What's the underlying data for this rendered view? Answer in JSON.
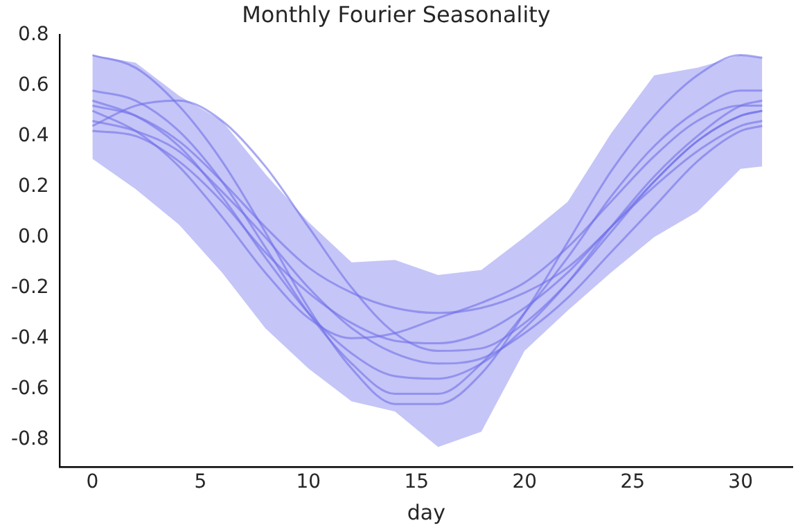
{
  "chart_data": {
    "type": "line",
    "title": "Monthly Fourier Seasonality",
    "xlabel": "day",
    "x": [
      0,
      2,
      4,
      6,
      8,
      10,
      12,
      14,
      16,
      18,
      20,
      22,
      24,
      26,
      28,
      30,
      31
    ],
    "xlim": [
      -1.5,
      32.4
    ],
    "xticks": [
      0,
      5,
      10,
      15,
      20,
      25,
      30
    ],
    "ylim": [
      -0.91,
      0.8
    ],
    "yticks": [
      -0.8,
      -0.6,
      -0.4,
      -0.2,
      {
        "value": 0,
        "label": "0.0"
      },
      0.2,
      0.4,
      0.6,
      0.8
    ],
    "grid": false,
    "legend": false,
    "marker": "none",
    "line_style": "solid",
    "series": [
      {
        "color": "#6f6fea",
        "values": [
          0.72,
          0.67,
          0.52,
          0.3,
          0.02,
          -0.28,
          -0.52,
          -0.66,
          -0.66,
          -0.54,
          -0.3,
          -0.02,
          0.26,
          0.48,
          0.64,
          0.72,
          0.71
        ],
        "lower": [
          0.31,
          0.19,
          0.05,
          -0.14,
          -0.36,
          -0.52,
          -0.65,
          -0.69,
          -0.83,
          -0.77,
          -0.45,
          -0.29,
          -0.14,
          0.0,
          0.1,
          0.27,
          0.28
        ],
        "upper": [
          0.72,
          0.69,
          0.56,
          0.46,
          0.25,
          0.06,
          -0.1,
          -0.09,
          -0.15,
          -0.13,
          0.0,
          0.14,
          0.41,
          0.64,
          0.67,
          0.72,
          0.71
        ]
      },
      {
        "color": "#6f6fea",
        "values": [
          0.44,
          0.52,
          0.54,
          0.46,
          0.28,
          0.04,
          -0.2,
          -0.38,
          -0.45,
          -0.44,
          -0.34,
          -0.18,
          0.02,
          0.22,
          0.38,
          0.48,
          0.5
        ]
      },
      {
        "color": "#6f6fea",
        "values": [
          0.58,
          0.54,
          0.42,
          0.22,
          -0.04,
          -0.3,
          -0.5,
          -0.62,
          -0.62,
          -0.5,
          -0.3,
          -0.08,
          0.16,
          0.36,
          0.5,
          0.58,
          0.58
        ]
      },
      {
        "color": "#6f6fea",
        "values": [
          0.52,
          0.48,
          0.38,
          0.22,
          0.04,
          -0.12,
          -0.22,
          -0.28,
          -0.3,
          -0.28,
          -0.22,
          -0.12,
          0.04,
          0.22,
          0.38,
          0.48,
          0.5
        ]
      },
      {
        "color": "#6f6fea",
        "values": [
          0.5,
          0.42,
          0.28,
          0.08,
          -0.14,
          -0.32,
          -0.4,
          -0.38,
          -0.32,
          -0.26,
          -0.18,
          -0.04,
          0.14,
          0.32,
          0.46,
          0.52,
          0.52
        ]
      },
      {
        "color": "#6f6fea",
        "values": [
          0.54,
          0.48,
          0.36,
          0.16,
          -0.08,
          -0.3,
          -0.46,
          -0.55,
          -0.56,
          -0.5,
          -0.36,
          -0.18,
          0.04,
          0.24,
          0.4,
          0.52,
          0.54
        ]
      },
      {
        "color": "#6f6fea",
        "values": [
          0.46,
          0.42,
          0.34,
          0.18,
          0.0,
          -0.2,
          -0.36,
          -0.46,
          -0.5,
          -0.48,
          -0.38,
          -0.24,
          -0.06,
          0.12,
          0.3,
          0.42,
          0.44
        ]
      },
      {
        "color": "#6f6fea",
        "values": [
          0.42,
          0.4,
          0.3,
          0.14,
          -0.06,
          -0.22,
          -0.34,
          -0.41,
          -0.42,
          -0.38,
          -0.28,
          -0.14,
          0.04,
          0.2,
          0.34,
          0.44,
          0.46
        ]
      }
    ]
  }
}
